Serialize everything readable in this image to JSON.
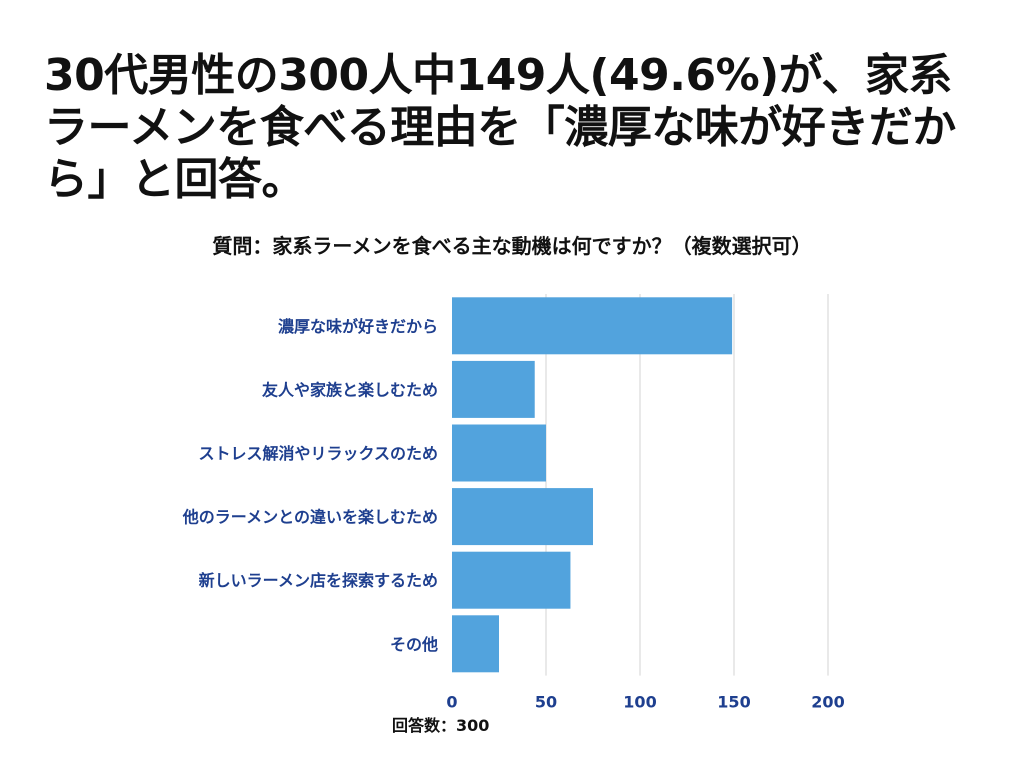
{
  "headline": "30代男性の300人中149人(49.6%)が、家系ラーメンを食べる理由を「濃厚な味が好きだから」と回答。",
  "question": "質問：家系ラーメンを食べる主な動機は何ですか？（複数選択可）",
  "footer": "回答数：300",
  "colors": {
    "bar": "#52a3dd",
    "label": "#1e3f8f",
    "grid": "#e2e2e2",
    "text": "#111111"
  },
  "chart_data": {
    "type": "bar",
    "orientation": "horizontal",
    "categories": [
      "濃厚な味が好きだから",
      "友人や家族と楽しむため",
      "ストレス解消やリラックスのため",
      "他のラーメンとの違いを楽しむため",
      "新しいラーメン店を探索するため",
      "その他"
    ],
    "values": [
      149,
      44,
      50,
      75,
      63,
      25
    ],
    "xlim": [
      0,
      200
    ],
    "xticks": [
      0,
      50,
      100,
      150,
      200
    ],
    "grid": true,
    "xlabel": "",
    "ylabel": ""
  }
}
